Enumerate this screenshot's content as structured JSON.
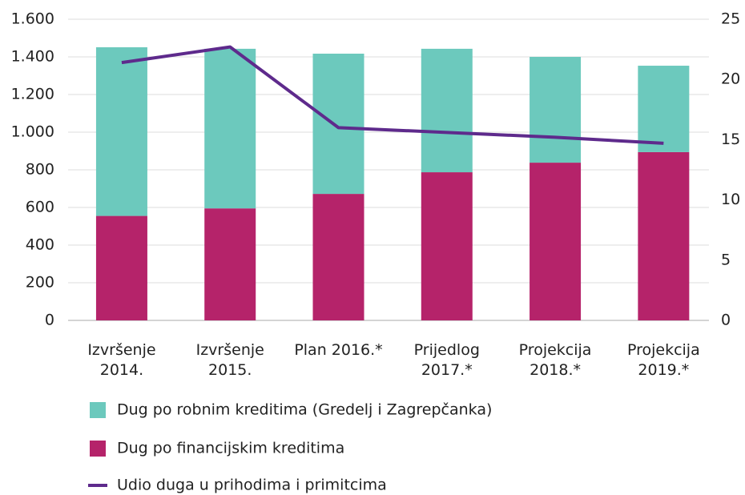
{
  "chart_data": {
    "type": "bar",
    "categories": [
      "Izvršenje 2014.",
      "Izvršenje 2015.",
      "Plan 2016.*",
      "Prijedlog 2017.*",
      "Projekcija 2018.*",
      "Projekcija 2019.*"
    ],
    "series": [
      {
        "name": "Dug po robnim kreditima (Gredelj i Zagrepčanka)",
        "color": "#6cc9bd",
        "type": "bar",
        "values": [
          896,
          848,
          745,
          656,
          562,
          459
        ]
      },
      {
        "name": "Dug po financijskim kreditima",
        "color": "#b5236a",
        "type": "bar",
        "values": [
          555,
          595,
          672,
          787,
          838,
          894
        ]
      },
      {
        "name": "Udio duga u prihodima i primitcima",
        "color": "#5e2a8c",
        "type": "line",
        "axis": "y2",
        "values": [
          21.4,
          22.7,
          16.0,
          15.6,
          15.2,
          14.7
        ]
      }
    ],
    "stacked": true,
    "ylim": [
      0,
      1600
    ],
    "yticks": [
      0,
      200,
      400,
      600,
      800,
      {
        "value": 1000,
        "label": "1.000"
      },
      {
        "value": 1200,
        "label": "1.200"
      },
      {
        "value": 1400,
        "label": "1.400"
      },
      {
        "value": 1600,
        "label": "1.600"
      }
    ],
    "y2lim": [
      0,
      25
    ],
    "y2ticks": [
      0,
      5,
      10,
      15,
      20,
      25
    ],
    "grid": true
  }
}
